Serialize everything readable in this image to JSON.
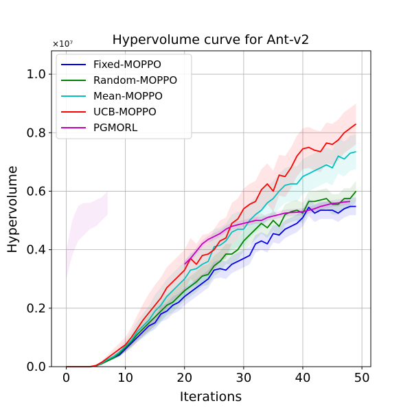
{
  "chart_data": {
    "type": "line",
    "title": "Hypervolume curve for Ant-v2",
    "xlabel": "Iterations",
    "ylabel": "Hypervolume",
    "offset_label": "×10⁷",
    "xlim": [
      -2.5,
      51.5
    ],
    "ylim": [
      0.0,
      1.08
    ],
    "x_ticks": [
      0,
      10,
      20,
      30,
      40,
      50
    ],
    "x_tick_labels": [
      "0",
      "10",
      "20",
      "30",
      "40",
      "50"
    ],
    "y_ticks": [
      0.0,
      0.2,
      0.4,
      0.6,
      0.8,
      1.0
    ],
    "y_tick_labels": [
      "0.0",
      "0.2",
      "0.4",
      "0.6",
      "0.8",
      "1.0"
    ],
    "grid": true,
    "legend_position": "top-left",
    "series": [
      {
        "name": "Fixed-MOPPO",
        "color": "#0000ee",
        "band_spread": 0.03,
        "x": [
          0,
          1,
          2,
          3,
          4,
          5,
          6,
          7,
          8,
          9,
          10,
          11,
          12,
          13,
          14,
          15,
          16,
          17,
          18,
          19,
          20,
          21,
          22,
          23,
          24,
          25,
          26,
          27,
          28,
          29,
          30,
          31,
          32,
          33,
          34,
          35,
          36,
          37,
          38,
          39,
          40,
          41,
          42,
          43,
          44,
          45,
          46,
          47,
          48,
          49
        ],
        "y": [
          0,
          0,
          0,
          0,
          0,
          0.002,
          0.01,
          0.02,
          0.03,
          0.04,
          0.06,
          0.08,
          0.1,
          0.12,
          0.14,
          0.15,
          0.18,
          0.19,
          0.21,
          0.22,
          0.24,
          0.255,
          0.27,
          0.285,
          0.3,
          0.33,
          0.335,
          0.33,
          0.35,
          0.36,
          0.37,
          0.38,
          0.42,
          0.43,
          0.42,
          0.455,
          0.45,
          0.47,
          0.48,
          0.49,
          0.51,
          0.545,
          0.525,
          0.535,
          0.535,
          0.535,
          0.525,
          0.54,
          0.548,
          0.548
        ]
      },
      {
        "name": "Random-MOPPO",
        "color": "#008000",
        "band_spread": 0.035,
        "x": [
          0,
          1,
          2,
          3,
          4,
          5,
          6,
          7,
          8,
          9,
          10,
          11,
          12,
          13,
          14,
          15,
          16,
          17,
          18,
          19,
          20,
          21,
          22,
          23,
          24,
          25,
          26,
          27,
          28,
          29,
          30,
          31,
          32,
          33,
          34,
          35,
          36,
          37,
          38,
          39,
          40,
          41,
          42,
          43,
          44,
          45,
          46,
          47,
          48,
          49
        ],
        "y": [
          0,
          0,
          0,
          0,
          0,
          0.002,
          0.01,
          0.02,
          0.03,
          0.045,
          0.065,
          0.085,
          0.11,
          0.13,
          0.15,
          0.17,
          0.19,
          0.21,
          0.22,
          0.24,
          0.26,
          0.275,
          0.29,
          0.31,
          0.315,
          0.345,
          0.36,
          0.385,
          0.385,
          0.4,
          0.43,
          0.45,
          0.47,
          0.49,
          0.475,
          0.5,
          0.48,
          0.52,
          0.53,
          0.535,
          0.525,
          0.565,
          0.565,
          0.57,
          0.575,
          0.555,
          0.555,
          0.575,
          0.575,
          0.6
        ]
      },
      {
        "name": "Mean-MOPPO",
        "color": "#00c0c0",
        "band_spread": 0.06,
        "x": [
          0,
          1,
          2,
          3,
          4,
          5,
          6,
          7,
          8,
          9,
          10,
          11,
          12,
          13,
          14,
          15,
          16,
          17,
          18,
          19,
          20,
          21,
          22,
          23,
          24,
          25,
          26,
          27,
          28,
          29,
          30,
          31,
          32,
          33,
          34,
          35,
          36,
          37,
          38,
          39,
          40,
          41,
          42,
          43,
          44,
          45,
          46,
          47,
          48,
          49
        ],
        "y": [
          0,
          0,
          0,
          0,
          0,
          0.003,
          0.012,
          0.025,
          0.035,
          0.05,
          0.07,
          0.09,
          0.12,
          0.14,
          0.16,
          0.19,
          0.21,
          0.24,
          0.26,
          0.28,
          0.3,
          0.33,
          0.335,
          0.35,
          0.36,
          0.41,
          0.415,
          0.43,
          0.46,
          0.47,
          0.47,
          0.5,
          0.52,
          0.535,
          0.56,
          0.575,
          0.6,
          0.62,
          0.625,
          0.625,
          0.65,
          0.66,
          0.67,
          0.68,
          0.69,
          0.68,
          0.72,
          0.71,
          0.73,
          0.735
        ]
      },
      {
        "name": "UCB-MOPPO",
        "color": "#ff0000",
        "band_spread": 0.07,
        "x": [
          0,
          1,
          2,
          3,
          4,
          5,
          6,
          7,
          8,
          9,
          10,
          11,
          12,
          13,
          14,
          15,
          16,
          17,
          18,
          19,
          20,
          21,
          22,
          23,
          24,
          25,
          26,
          27,
          28,
          29,
          30,
          31,
          32,
          33,
          34,
          35,
          36,
          37,
          38,
          39,
          40,
          41,
          42,
          43,
          44,
          45,
          46,
          47,
          48,
          49
        ],
        "y": [
          0,
          0,
          0,
          0,
          0,
          0.004,
          0.015,
          0.03,
          0.045,
          0.06,
          0.075,
          0.1,
          0.13,
          0.16,
          0.185,
          0.21,
          0.235,
          0.27,
          0.29,
          0.31,
          0.33,
          0.37,
          0.35,
          0.38,
          0.385,
          0.4,
          0.43,
          0.44,
          0.49,
          0.505,
          0.54,
          0.555,
          0.565,
          0.605,
          0.625,
          0.6,
          0.655,
          0.65,
          0.68,
          0.72,
          0.745,
          0.75,
          0.74,
          0.735,
          0.765,
          0.76,
          0.775,
          0.8,
          0.815,
          0.83
        ]
      },
      {
        "name": "PGMORL",
        "color": "#c000c0",
        "band_spread": 0.012,
        "x": [
          20,
          21,
          22,
          23,
          24,
          25,
          26,
          27,
          28,
          29,
          30,
          31,
          32,
          33,
          34,
          35,
          36,
          37,
          38,
          39,
          40,
          41,
          42,
          43,
          44,
          45,
          46,
          47,
          48
        ],
        "y": [
          0.35,
          0.37,
          0.395,
          0.42,
          0.435,
          0.445,
          0.455,
          0.47,
          0.48,
          0.485,
          0.49,
          0.495,
          0.5,
          0.5,
          0.51,
          0.515,
          0.52,
          0.525,
          0.527,
          0.528,
          0.53,
          0.535,
          0.54,
          0.548,
          0.553,
          0.558,
          0.56,
          0.563,
          0.565
        ]
      }
    ],
    "extra_band": {
      "color": "#c000c0",
      "x": [
        0,
        1,
        2,
        3,
        4,
        5,
        6,
        7
      ],
      "lower": [
        0.3,
        0.38,
        0.43,
        0.45,
        0.47,
        0.48,
        0.5,
        0.52
      ],
      "upper": [
        0.4,
        0.5,
        0.55,
        0.56,
        0.56,
        0.57,
        0.58,
        0.6
      ]
    }
  }
}
